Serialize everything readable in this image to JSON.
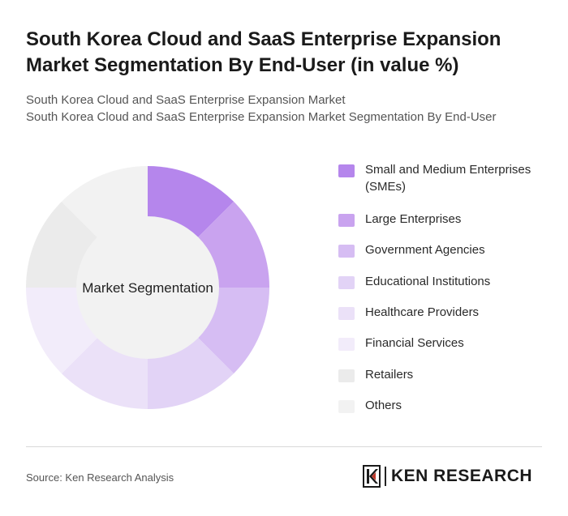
{
  "title": "South Korea Cloud and SaaS Enterprise Expansion Market Segmentation By End-User (in value %)",
  "subtitle_line1": "South Korea Cloud and SaaS Enterprise Expansion Market",
  "subtitle_line2": "South Korea Cloud and SaaS Enterprise Expansion Market Segmentation By End-User",
  "chart_data": {
    "type": "pie",
    "donut": true,
    "center_label": "Market Segmentation",
    "categories": [
      "Small and Medium Enterprises (SMEs)",
      "Large Enterprises",
      "Government Agencies",
      "Educational Institutions",
      "Healthcare Providers",
      "Financial Services",
      "Retailers",
      "Others"
    ],
    "values": [
      12.5,
      12.5,
      12.5,
      12.5,
      12.5,
      12.5,
      12.5,
      12.5
    ],
    "colors": [
      "#b586ec",
      "#c9a3ef",
      "#d6bdf3",
      "#e2d3f6",
      "#ebe1f8",
      "#f2ecfa",
      "#ebebeb",
      "#f2f2f2"
    ],
    "legend_position": "right"
  },
  "footer": {
    "source": "Source: Ken Research Analysis",
    "logo_text": "KEN RESEARCH"
  }
}
